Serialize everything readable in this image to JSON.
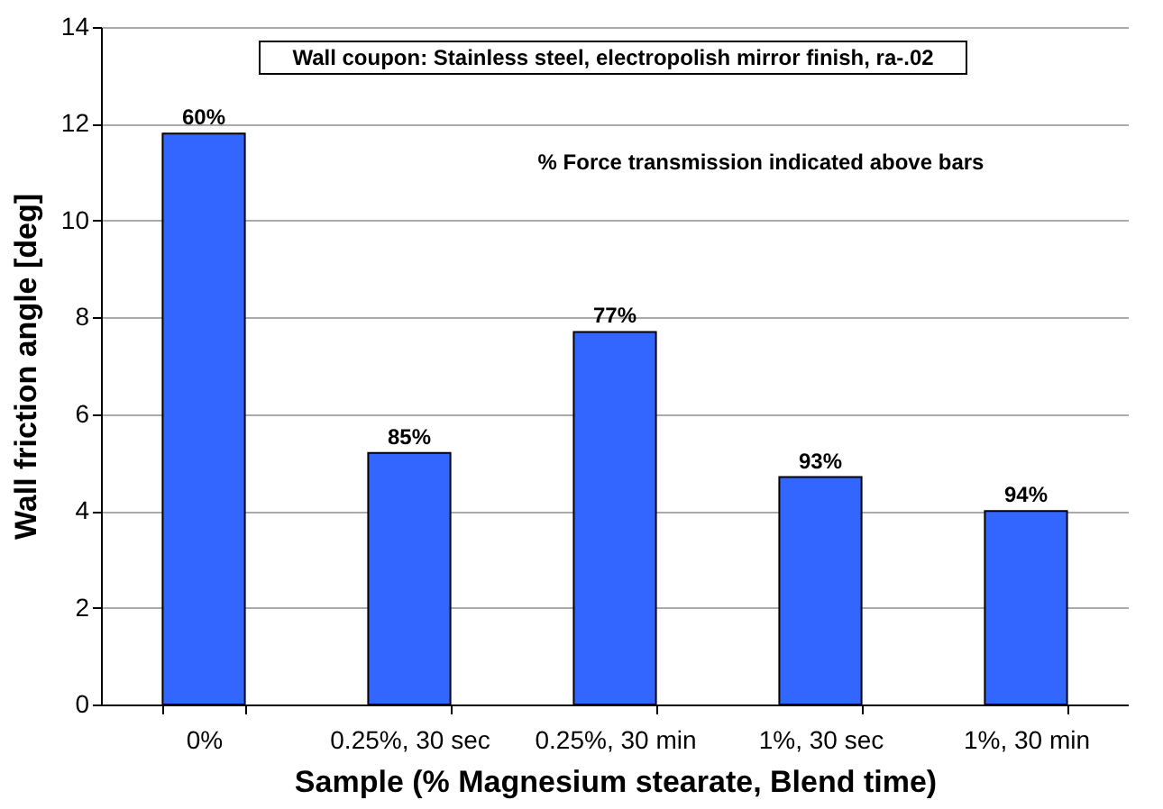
{
  "chart_data": {
    "type": "bar",
    "xlabel": "Sample (% Magnesium stearate, Blend time)",
    "ylabel": "Wall friction angle [deg]",
    "categories": [
      "0%",
      "0.25%, 30 sec",
      "0.25%, 30 min",
      "1%, 30 sec",
      "1%, 30 min"
    ],
    "values": [
      11.8,
      5.2,
      7.7,
      4.7,
      4.0
    ],
    "color": "#3366ff",
    "ylim": [
      0,
      14
    ],
    "yticks": [
      0,
      2,
      4,
      6,
      8,
      10,
      12,
      14
    ],
    "grid": "y",
    "annotations": [
      "Wall coupon: Stainless steel, electropolish mirror finish, ra-.02",
      "% Force transmission indicated above bars",
      {
        "text": "60%",
        "x": "0%",
        "y": 11.8
      },
      {
        "text": "85%",
        "x": "0.25%, 30 sec",
        "y": 5.2
      },
      {
        "text": "77%",
        "x": "0.25%, 30 min",
        "y": 7.7
      },
      {
        "text": "93%",
        "x": "1%, 30 sec",
        "y": 4.7
      },
      {
        "text": "94%",
        "x": "1%, 30 min",
        "y": 4.0
      }
    ]
  }
}
